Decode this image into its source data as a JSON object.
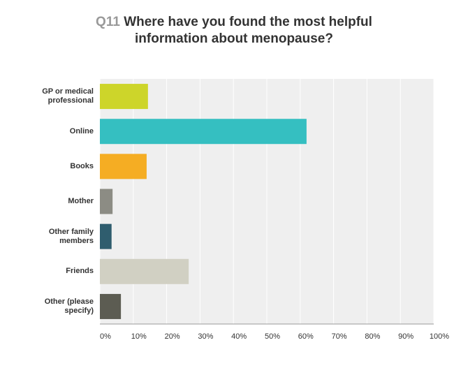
{
  "chart_data": {
    "type": "bar",
    "orientation": "horizontal",
    "question_number": "Q11",
    "title": "Where have you found the most helpful information about menopause?",
    "categories": [
      "GP or medical professional",
      "Online",
      "Books",
      "Mother",
      "Other family members",
      "Friends",
      "Other (please specify)"
    ],
    "values": [
      14.4,
      61.9,
      14,
      3.8,
      3.5,
      26.6,
      6.3
    ],
    "colors": [
      "#cdd52a",
      "#35bfc1",
      "#f5ad23",
      "#8c8c84",
      "#2f5d6e",
      "#d1d0c3",
      "#5c5c52"
    ],
    "xlim": [
      0,
      100
    ],
    "xticks": [
      {
        "value": 0,
        "label": "0%"
      },
      {
        "value": 10,
        "label": "10%"
      },
      {
        "value": 20,
        "label": "20%"
      },
      {
        "value": 30,
        "label": "30%"
      },
      {
        "value": 40,
        "label": "40%"
      },
      {
        "value": 50,
        "label": "50%"
      },
      {
        "value": 60,
        "label": "60%"
      },
      {
        "value": 70,
        "label": "70%"
      },
      {
        "value": 80,
        "label": "80%"
      },
      {
        "value": 90,
        "label": "90%"
      },
      {
        "value": 100,
        "label": "100%"
      }
    ],
    "grid": true
  }
}
